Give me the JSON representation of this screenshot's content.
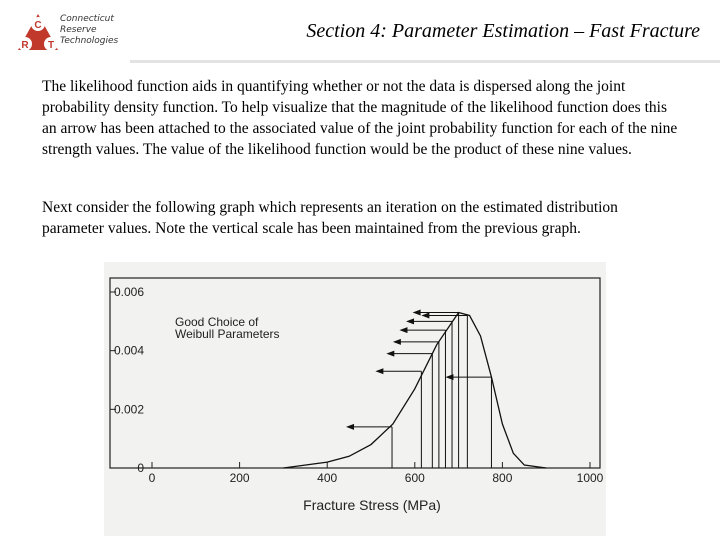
{
  "header": {
    "title": "Section 4: Parameter Estimation – Fast Fracture",
    "logo_lines": [
      "Connecticut",
      "Reserve",
      "Technologies"
    ]
  },
  "body": {
    "paragraphs": [
      "The likelihood function aids in quantifying whether or not the data is dispersed along the joint probability density function.  To help visualize that the magnitude of the likelihood function does this an arrow has been attached  to the associated value of the joint probability function for each of the nine strength values.  The value of the likelihood function would be the product of these nine values.",
      "Next consider the following graph which represents an iteration on the estimated distribution parameter values.  Note the vertical scale has been maintained from the previous graph."
    ]
  },
  "figure": {
    "type": "line",
    "xlabel": "Fracture Stress (MPa)",
    "annotation": [
      "Good Choice of",
      "Weibull Parameters"
    ],
    "xlim": [
      0,
      1000
    ],
    "xticks": [
      0,
      200,
      400,
      600,
      800,
      1000
    ],
    "ylim": [
      0,
      0.006
    ],
    "yticks": [
      0,
      0.002,
      0.004,
      0.006
    ],
    "curve": {
      "x": [
        300,
        400,
        450,
        500,
        550,
        600,
        650,
        700,
        725,
        750,
        775,
        800,
        825,
        850,
        900
      ],
      "y": [
        0,
        0.0002,
        0.0004,
        0.0008,
        0.0015,
        0.0027,
        0.0042,
        0.0053,
        0.0052,
        0.0045,
        0.0031,
        0.0015,
        0.0005,
        0.0001,
        0
      ]
    },
    "strengths": {
      "x": [
        548,
        615,
        640,
        655,
        670,
        685,
        700,
        720,
        775
      ],
      "y": [
        0.0014,
        0.0033,
        0.0039,
        0.0043,
        0.0047,
        0.005,
        0.0053,
        0.0052,
        0.0031
      ]
    }
  }
}
